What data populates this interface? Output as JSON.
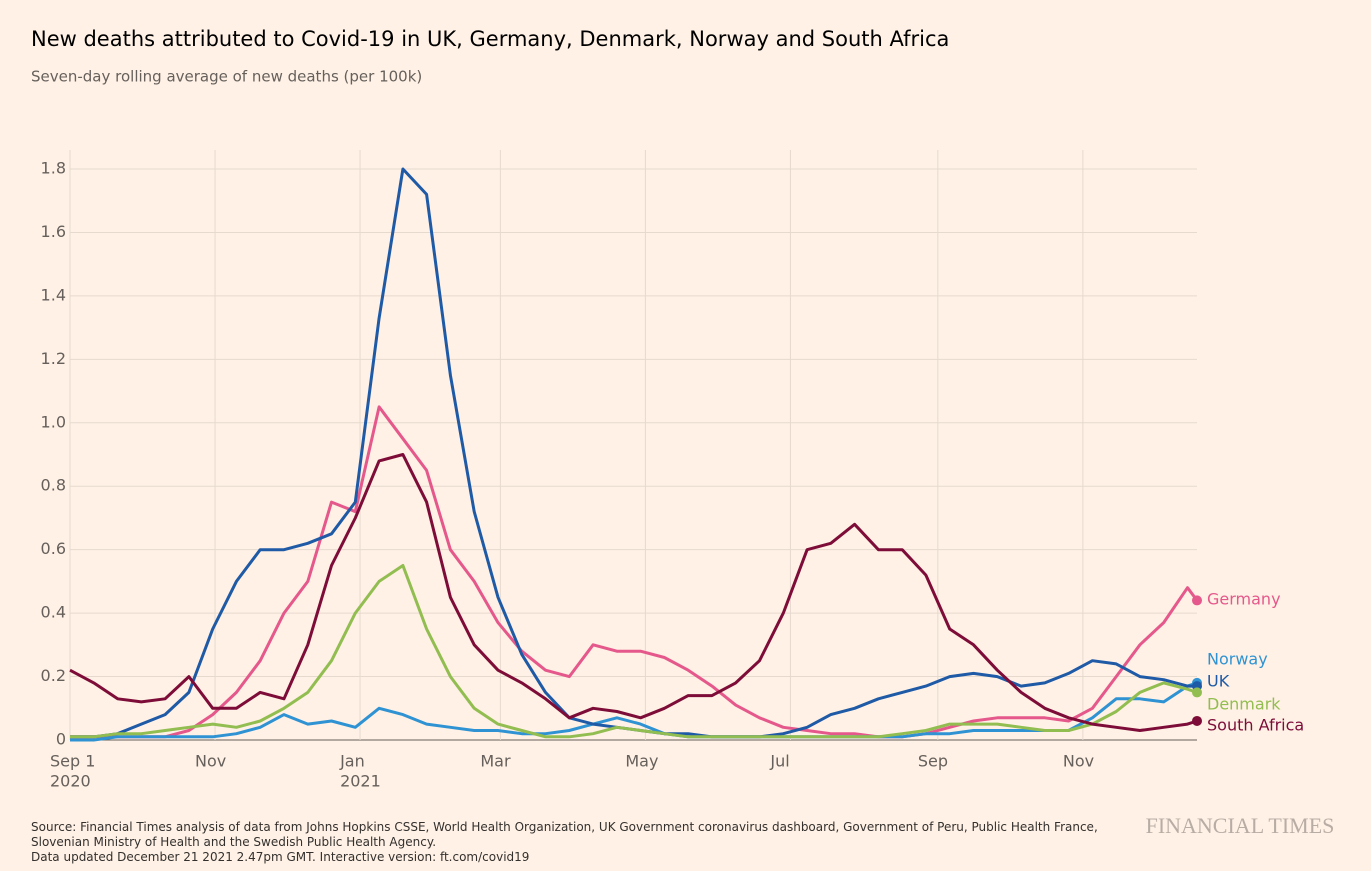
{
  "chart_data": {
    "type": "line",
    "title": "New deaths attributed to Covid-19 in UK, Germany, Denmark, Norway and South Africa",
    "subtitle": "Seven-day rolling average of new deaths (per 100k)",
    "source": "Source: Financial Times analysis of data from Johns Hopkins CSSE, World Health Organization, UK Government coronavirus dashboard, Government of Peru, Public Health France, Slovenian Ministry of Health and the Swedish Public Health Agency.",
    "updated": "Data updated December 21 2021 2.47pm GMT. Interactive version: ft.com/covid19",
    "brand": "FINANCIAL TIMES",
    "x": [
      0,
      10,
      20,
      30,
      40,
      50,
      60,
      70,
      80,
      90,
      100,
      110,
      120,
      130,
      140,
      150,
      160,
      170,
      180,
      190,
      200,
      210,
      220,
      230,
      240,
      250,
      260,
      270,
      280,
      290,
      300,
      310,
      320,
      330,
      340,
      350,
      360,
      370,
      380,
      390,
      400,
      410,
      420,
      430,
      440,
      450,
      460,
      470,
      474
    ],
    "xlim": [
      0,
      474
    ],
    "xticks": [
      {
        "value": 0,
        "label": "Sep 1"
      },
      {
        "value": 61,
        "label": "Nov"
      },
      {
        "value": 122,
        "label": "Jan"
      },
      {
        "value": 181,
        "label": "Mar"
      },
      {
        "value": 242,
        "label": "May"
      },
      {
        "value": 303,
        "label": "Jul"
      },
      {
        "value": 365,
        "label": "Sep"
      },
      {
        "value": 426,
        "label": "Nov"
      }
    ],
    "year_labels": [
      {
        "value": 0,
        "label": "2020"
      },
      {
        "value": 122,
        "label": "2021"
      }
    ],
    "ylim": [
      0,
      1.86
    ],
    "yticks": [
      0,
      {
        "value": 0.2,
        "label": "0.2"
      },
      {
        "value": 0.4,
        "label": "0.4"
      },
      {
        "value": 0.6,
        "label": "0.6"
      },
      {
        "value": 0.8,
        "label": "0.8"
      },
      {
        "value": 1.0,
        "label": "1.0"
      },
      {
        "value": 1.2,
        "label": "1.2"
      },
      {
        "value": 1.4,
        "label": "1.4"
      },
      {
        "value": 1.6,
        "label": "1.6"
      },
      {
        "value": 1.8,
        "label": "1.8"
      }
    ],
    "grid": true,
    "series": [
      {
        "name": "Germany",
        "color": "#e5588b",
        "values": [
          0.01,
          0.01,
          0.01,
          0.01,
          0.01,
          0.03,
          0.08,
          0.15,
          0.25,
          0.4,
          0.5,
          0.75,
          0.72,
          1.05,
          0.95,
          0.85,
          0.6,
          0.5,
          0.37,
          0.28,
          0.22,
          0.2,
          0.3,
          0.28,
          0.28,
          0.26,
          0.22,
          0.17,
          0.11,
          0.07,
          0.04,
          0.03,
          0.02,
          0.02,
          0.01,
          0.01,
          0.02,
          0.04,
          0.06,
          0.07,
          0.07,
          0.07,
          0.06,
          0.1,
          0.2,
          0.3,
          0.37,
          0.48,
          0.44
        ]
      },
      {
        "name": "Norway",
        "color": "#2f93d3",
        "values": [
          0,
          0,
          0.01,
          0.01,
          0.01,
          0.01,
          0.01,
          0.02,
          0.04,
          0.08,
          0.05,
          0.06,
          0.04,
          0.1,
          0.08,
          0.05,
          0.04,
          0.03,
          0.03,
          0.02,
          0.02,
          0.03,
          0.05,
          0.07,
          0.05,
          0.02,
          0.01,
          0.01,
          0.01,
          0.01,
          0.01,
          0.01,
          0.01,
          0.01,
          0.01,
          0.01,
          0.02,
          0.02,
          0.03,
          0.03,
          0.03,
          0.03,
          0.03,
          0.07,
          0.13,
          0.13,
          0.12,
          0.17,
          0.18
        ]
      },
      {
        "name": "UK",
        "color": "#1f5aa6",
        "values": [
          0.01,
          0.01,
          0.02,
          0.05,
          0.08,
          0.15,
          0.35,
          0.5,
          0.6,
          0.6,
          0.62,
          0.65,
          0.75,
          1.33,
          1.8,
          1.72,
          1.15,
          0.72,
          0.45,
          0.27,
          0.15,
          0.07,
          0.05,
          0.04,
          0.03,
          0.02,
          0.02,
          0.01,
          0.01,
          0.01,
          0.02,
          0.04,
          0.08,
          0.1,
          0.13,
          0.15,
          0.17,
          0.2,
          0.21,
          0.2,
          0.17,
          0.18,
          0.21,
          0.25,
          0.24,
          0.2,
          0.19,
          0.17,
          0.17
        ]
      },
      {
        "name": "Denmark",
        "color": "#92bd50",
        "values": [
          0.01,
          0.01,
          0.02,
          0.02,
          0.03,
          0.04,
          0.05,
          0.04,
          0.06,
          0.1,
          0.15,
          0.25,
          0.4,
          0.5,
          0.55,
          0.35,
          0.2,
          0.1,
          0.05,
          0.03,
          0.01,
          0.01,
          0.02,
          0.04,
          0.03,
          0.02,
          0.01,
          0.01,
          0.01,
          0.01,
          0.01,
          0.01,
          0.01,
          0.01,
          0.01,
          0.02,
          0.03,
          0.05,
          0.05,
          0.05,
          0.04,
          0.03,
          0.03,
          0.05,
          0.09,
          0.15,
          0.18,
          0.16,
          0.15
        ]
      },
      {
        "name": "South Africa",
        "color": "#7d0d38",
        "values": [
          0.22,
          0.18,
          0.13,
          0.12,
          0.13,
          0.2,
          0.1,
          0.1,
          0.15,
          0.13,
          0.3,
          0.55,
          0.7,
          0.88,
          0.9,
          0.75,
          0.45,
          0.3,
          0.22,
          0.18,
          0.13,
          0.07,
          0.1,
          0.09,
          0.07,
          0.1,
          0.14,
          0.14,
          0.18,
          0.25,
          0.4,
          0.6,
          0.62,
          0.68,
          0.6,
          0.6,
          0.52,
          0.35,
          0.3,
          0.22,
          0.15,
          0.1,
          0.07,
          0.05,
          0.04,
          0.03,
          0.04,
          0.05,
          0.06
        ]
      }
    ]
  }
}
